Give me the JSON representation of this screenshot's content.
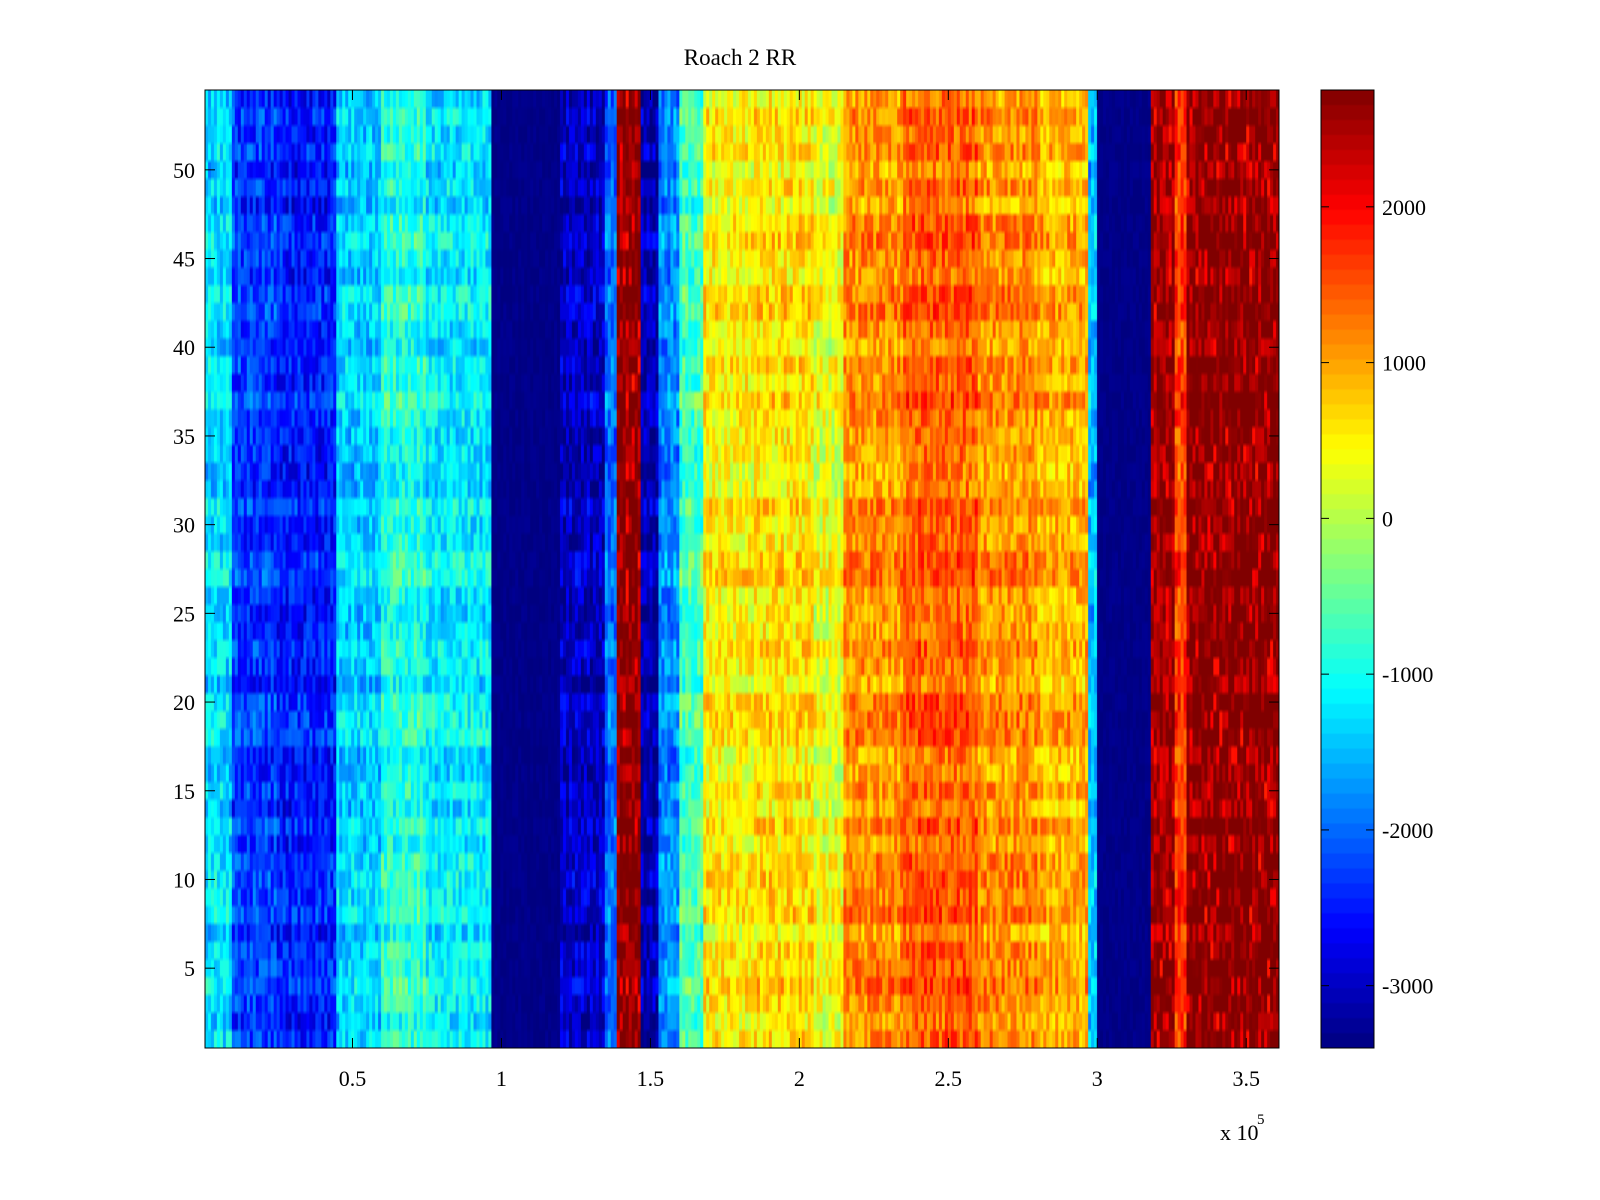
{
  "chart_data": {
    "type": "heatmap",
    "title": "Roach 2 RR",
    "xlabel": "",
    "ylabel": "",
    "x_multiplier_label": "x 10",
    "x_multiplier_exponent": "5",
    "xlim": [
      500,
      361000
    ],
    "ylim": [
      0.5,
      54.5
    ],
    "x_ticks": [
      {
        "value": 50000,
        "label": "0.5"
      },
      {
        "value": 100000,
        "label": "1"
      },
      {
        "value": 150000,
        "label": "1.5"
      },
      {
        "value": 200000,
        "label": "2"
      },
      {
        "value": 250000,
        "label": "2.5"
      },
      {
        "value": 300000,
        "label": "3"
      },
      {
        "value": 350000,
        "label": "3.5"
      }
    ],
    "y_ticks": [
      {
        "value": 5,
        "label": "5"
      },
      {
        "value": 10,
        "label": "10"
      },
      {
        "value": 15,
        "label": "15"
      },
      {
        "value": 20,
        "label": "20"
      },
      {
        "value": 25,
        "label": "25"
      },
      {
        "value": 30,
        "label": "30"
      },
      {
        "value": 35,
        "label": "35"
      },
      {
        "value": 40,
        "label": "40"
      },
      {
        "value": 45,
        "label": "45"
      },
      {
        "value": 50,
        "label": "50"
      }
    ],
    "colorbar": {
      "colormap": "jet",
      "clim": [
        -3400,
        2750
      ],
      "ticks": [
        {
          "value": 2000,
          "label": "2000"
        },
        {
          "value": 1000,
          "label": "1000"
        },
        {
          "value": 0,
          "label": "0"
        },
        {
          "value": -1000,
          "label": "-1000"
        },
        {
          "value": -2000,
          "label": "-2000"
        },
        {
          "value": -3000,
          "label": "-3000"
        }
      ]
    },
    "rows": 54,
    "column_profile": [
      {
        "x_start": 500,
        "x_end": 10000,
        "value": -1300
      },
      {
        "x_start": 10000,
        "x_end": 25000,
        "value": -2300
      },
      {
        "x_start": 25000,
        "x_end": 45000,
        "value": -2500
      },
      {
        "x_start": 45000,
        "x_end": 60000,
        "value": -1400
      },
      {
        "x_start": 60000,
        "x_end": 75000,
        "value": -900
      },
      {
        "x_start": 75000,
        "x_end": 97000,
        "value": -1200
      },
      {
        "x_start": 97000,
        "x_end": 120000,
        "value": -3350
      },
      {
        "x_start": 120000,
        "x_end": 135000,
        "value": -3000
      },
      {
        "x_start": 135000,
        "x_end": 139000,
        "value": -2000
      },
      {
        "x_start": 139000,
        "x_end": 147000,
        "value": 2750
      },
      {
        "x_start": 147000,
        "x_end": 153000,
        "value": -3100
      },
      {
        "x_start": 153000,
        "x_end": 160000,
        "value": -1800
      },
      {
        "x_start": 160000,
        "x_end": 168000,
        "value": -700
      },
      {
        "x_start": 168000,
        "x_end": 185000,
        "value": 500
      },
      {
        "x_start": 185000,
        "x_end": 205000,
        "value": 600
      },
      {
        "x_start": 205000,
        "x_end": 215000,
        "value": 300
      },
      {
        "x_start": 215000,
        "x_end": 235000,
        "value": 1100
      },
      {
        "x_start": 235000,
        "x_end": 260000,
        "value": 1400
      },
      {
        "x_start": 260000,
        "x_end": 280000,
        "value": 1100
      },
      {
        "x_start": 280000,
        "x_end": 297000,
        "value": 900
      },
      {
        "x_start": 297000,
        "x_end": 300000,
        "value": -1500
      },
      {
        "x_start": 300000,
        "x_end": 318000,
        "value": -3350
      },
      {
        "x_start": 318000,
        "x_end": 326000,
        "value": 2600
      },
      {
        "x_start": 326000,
        "x_end": 330000,
        "value": 1600
      },
      {
        "x_start": 330000,
        "x_end": 361000,
        "value": 2750
      }
    ]
  }
}
